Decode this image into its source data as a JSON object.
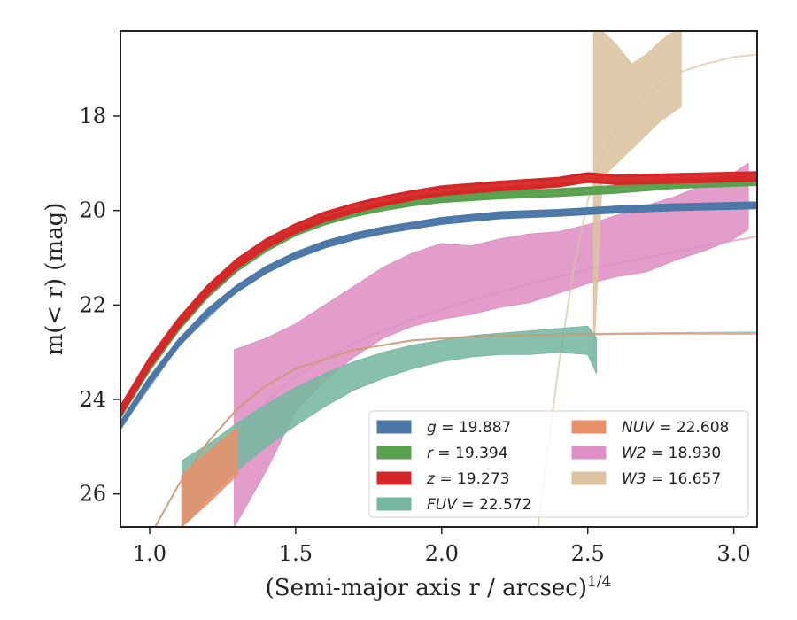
{
  "chart_data": {
    "type": "area",
    "xlabel": "(Semi-major axis r / arcsec)",
    "xlabel_sup": "1/4",
    "ylabel": "m(< r) (mag)",
    "xlim": [
      0.9,
      3.08
    ],
    "ylim": [
      26.7,
      16.2
    ],
    "y_inverted": true,
    "xticks": [
      1.0,
      1.5,
      2.0,
      2.5,
      3.0
    ],
    "xtick_labels": [
      "1.0",
      "1.5",
      "2.0",
      "2.5",
      "3.0"
    ],
    "yticks": [
      18,
      20,
      22,
      24,
      26
    ],
    "ytick_labels": [
      "18",
      "20",
      "22",
      "24",
      "26"
    ],
    "grid": false,
    "legend_position": "lower-right",
    "legend_columns": 2,
    "series": [
      {
        "name": "g = 19.887",
        "band": "g",
        "value": "19.887",
        "color": "#4c78a8",
        "x": [
          0.9,
          1.0,
          1.1,
          1.2,
          1.3,
          1.4,
          1.5,
          1.6,
          1.7,
          1.8,
          1.9,
          2.0,
          2.2,
          2.4,
          2.6,
          2.8,
          3.08
        ],
        "y": [
          24.55,
          23.6,
          22.8,
          22.15,
          21.65,
          21.25,
          20.95,
          20.72,
          20.55,
          20.42,
          20.32,
          20.22,
          20.1,
          20.05,
          19.98,
          19.93,
          19.89
        ],
        "band_halfwidth": 0.05,
        "model_x": [
          0.9,
          1.1,
          1.3,
          1.5,
          1.7,
          1.9,
          2.1,
          2.4,
          2.7,
          3.08
        ],
        "model_y": [
          24.6,
          22.85,
          21.68,
          20.95,
          20.52,
          20.28,
          20.14,
          20.02,
          19.94,
          19.89
        ]
      },
      {
        "name": "r = 19.394",
        "band": "r",
        "value": "19.394",
        "color": "#59a14f",
        "x": [
          0.9,
          1.0,
          1.1,
          1.2,
          1.3,
          1.4,
          1.5,
          1.6,
          1.7,
          1.8,
          1.9,
          2.0,
          2.2,
          2.4,
          2.6,
          2.8,
          3.08
        ],
        "y": [
          24.3,
          23.3,
          22.45,
          21.75,
          21.2,
          20.78,
          20.45,
          20.22,
          20.05,
          19.92,
          19.82,
          19.75,
          19.67,
          19.62,
          19.55,
          19.45,
          19.39
        ],
        "band_halfwidth": 0.06,
        "model_x": [
          0.9,
          1.1,
          1.3,
          1.5,
          1.7,
          1.9,
          2.1,
          2.4,
          2.7,
          3.08
        ],
        "model_y": [
          24.3,
          22.45,
          21.2,
          20.45,
          20.05,
          19.82,
          19.7,
          19.6,
          19.48,
          19.4
        ]
      },
      {
        "name": "z = 19.273",
        "band": "z",
        "value": "19.273",
        "color": "#d62728",
        "x": [
          0.9,
          1.0,
          1.1,
          1.2,
          1.3,
          1.4,
          1.5,
          1.6,
          1.7,
          1.8,
          1.9,
          2.0,
          2.2,
          2.4,
          2.5,
          2.6,
          2.8,
          3.08
        ],
        "y": [
          24.25,
          23.22,
          22.38,
          21.68,
          21.12,
          20.7,
          20.38,
          20.13,
          19.95,
          19.8,
          19.68,
          19.58,
          19.48,
          19.4,
          19.3,
          19.35,
          19.32,
          19.28
        ],
        "band_halfwidth": 0.08,
        "model_x": [
          0.9,
          1.1,
          1.3,
          1.5,
          1.7,
          1.9,
          2.1,
          2.4,
          2.7,
          3.08
        ],
        "model_y": [
          24.25,
          22.4,
          21.12,
          20.4,
          19.97,
          19.7,
          19.55,
          19.43,
          19.35,
          19.28
        ]
      },
      {
        "name": "FUV = 22.572",
        "band": "FUV",
        "value": "22.572",
        "color": "#76b7a0",
        "x": [
          1.11,
          1.2,
          1.3,
          1.4,
          1.5,
          1.6,
          1.7,
          1.8,
          1.9,
          2.0,
          2.1,
          2.2,
          2.3,
          2.4,
          2.5,
          2.53
        ],
        "y_low": [
          25.3,
          24.95,
          24.5,
          24.1,
          23.75,
          23.45,
          23.2,
          23.0,
          22.85,
          22.75,
          22.65,
          22.6,
          22.55,
          22.5,
          22.45,
          22.7
        ],
        "y_high": [
          26.7,
          26.1,
          25.5,
          25.0,
          24.55,
          24.15,
          23.8,
          23.55,
          23.35,
          23.2,
          23.1,
          23.05,
          23.05,
          23.0,
          23.05,
          23.45
        ],
        "model_x": [
          0.9,
          1.0,
          1.1,
          1.2,
          1.3,
          1.4,
          1.5,
          1.7,
          1.9,
          2.1,
          2.4,
          2.7,
          3.08
        ],
        "model_y": [
          28.0,
          26.9,
          25.8,
          24.9,
          24.2,
          23.7,
          23.35,
          22.95,
          22.75,
          22.67,
          22.62,
          22.6,
          22.58
        ]
      },
      {
        "name": "NUV = 22.608",
        "band": "NUV",
        "value": "22.608",
        "color": "#e8906a",
        "x": [
          1.11,
          1.2,
          1.3
        ],
        "y_low": [
          25.6,
          25.1,
          24.6
        ],
        "y_high": [
          26.7,
          26.2,
          25.6
        ],
        "model_x": [
          0.9,
          1.0,
          1.1,
          1.2,
          1.3,
          1.4,
          1.5,
          1.7,
          1.9,
          2.1,
          2.4,
          2.7,
          3.08
        ],
        "model_y": [
          28.0,
          26.9,
          25.8,
          24.9,
          24.2,
          23.7,
          23.35,
          22.95,
          22.75,
          22.67,
          22.63,
          22.61,
          22.61
        ]
      },
      {
        "name": "W2 = 18.930",
        "band": "W2",
        "value": "18.930",
        "color": "#de8fc4",
        "x": [
          1.29,
          1.4,
          1.5,
          1.6,
          1.7,
          1.8,
          1.9,
          2.0,
          2.1,
          2.2,
          2.3,
          2.4,
          2.5,
          2.6,
          2.7,
          2.8,
          2.9,
          3.0,
          3.05
        ],
        "y_low": [
          22.95,
          22.7,
          22.4,
          22.0,
          21.6,
          21.2,
          20.9,
          20.7,
          20.75,
          20.6,
          20.5,
          20.45,
          20.3,
          20.1,
          19.9,
          19.7,
          19.45,
          19.2,
          19.0
        ],
        "y_high": [
          26.7,
          25.5,
          24.25,
          23.6,
          23.1,
          22.7,
          22.45,
          22.3,
          22.2,
          22.05,
          21.95,
          21.75,
          21.55,
          21.4,
          21.3,
          21.05,
          20.85,
          20.6,
          20.4
        ],
        "model_x": [
          1.3,
          1.5,
          1.7,
          1.9,
          2.1,
          2.3,
          2.5,
          2.7,
          2.9,
          3.08
        ],
        "model_y": [
          24.6,
          23.5,
          22.8,
          22.3,
          21.9,
          21.55,
          21.25,
          21.0,
          20.75,
          20.55
        ]
      },
      {
        "name": "W3 = 16.657",
        "band": "W3",
        "value": "16.657",
        "color": "#dcc3a0",
        "x": [
          2.52,
          2.55,
          2.6,
          2.65,
          2.7,
          2.75,
          2.82
        ],
        "y_low": [
          16.2,
          16.2,
          16.5,
          16.9,
          16.7,
          16.4,
          16.1
        ],
        "y_high": [
          23.2,
          19.3,
          19.0,
          18.7,
          18.4,
          18.1,
          17.8
        ],
        "model_x": [
          2.33,
          2.4,
          2.45,
          2.5,
          2.55,
          2.6,
          2.7,
          2.8,
          2.9,
          3.0,
          3.08
        ],
        "model_y": [
          26.7,
          23.3,
          21.3,
          19.8,
          18.85,
          18.2,
          17.55,
          17.1,
          16.9,
          16.75,
          16.7
        ]
      }
    ]
  }
}
